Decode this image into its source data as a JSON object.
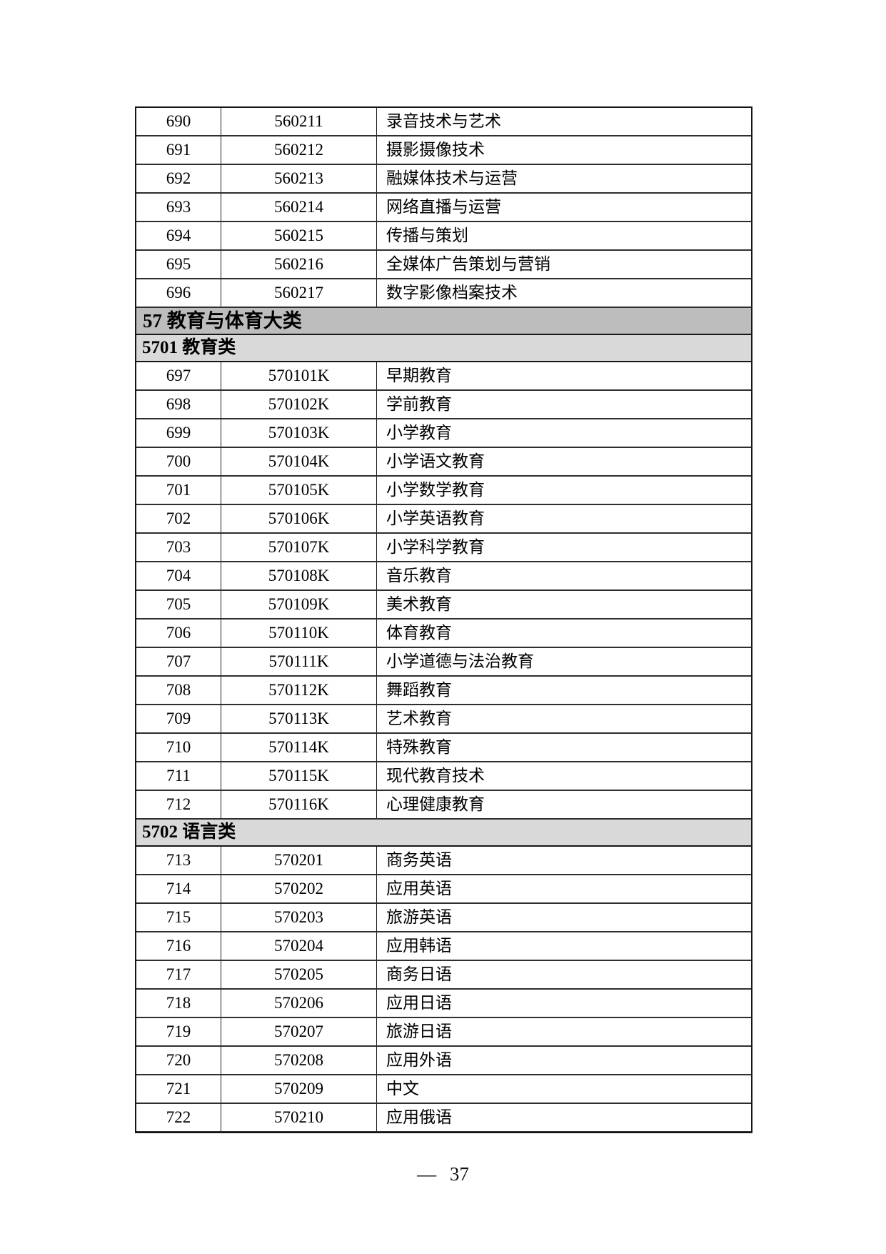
{
  "colors": {
    "page_background": "#ffffff",
    "text": "#000000",
    "table_border": "#161616",
    "major_header_background": "#bdbdbd",
    "sub_header_background": "#d9d9d9"
  },
  "document": {
    "table": {
      "sections": [
        {
          "type": "rows",
          "rows": [
            {
              "seq": "690",
              "code": "560211",
              "name": "录音技术与艺术"
            },
            {
              "seq": "691",
              "code": "560212",
              "name": "摄影摄像技术"
            },
            {
              "seq": "692",
              "code": "560213",
              "name": "融媒体技术与运营"
            },
            {
              "seq": "693",
              "code": "560214",
              "name": "网络直播与运营"
            },
            {
              "seq": "694",
              "code": "560215",
              "name": "传播与策划"
            },
            {
              "seq": "695",
              "code": "560216",
              "name": "全媒体广告策划与营销"
            },
            {
              "seq": "696",
              "code": "560217",
              "name": "数字影像档案技术"
            }
          ]
        },
        {
          "type": "major-header",
          "label": "57 教育与体育大类"
        },
        {
          "type": "sub-header",
          "label": "5701 教育类"
        },
        {
          "type": "rows",
          "rows": [
            {
              "seq": "697",
              "code": "570101K",
              "name": "早期教育"
            },
            {
              "seq": "698",
              "code": "570102K",
              "name": "学前教育"
            },
            {
              "seq": "699",
              "code": "570103K",
              "name": "小学教育"
            },
            {
              "seq": "700",
              "code": "570104K",
              "name": "小学语文教育"
            },
            {
              "seq": "701",
              "code": "570105K",
              "name": "小学数学教育"
            },
            {
              "seq": "702",
              "code": "570106K",
              "name": "小学英语教育"
            },
            {
              "seq": "703",
              "code": "570107K",
              "name": "小学科学教育"
            },
            {
              "seq": "704",
              "code": "570108K",
              "name": "音乐教育"
            },
            {
              "seq": "705",
              "code": "570109K",
              "name": "美术教育"
            },
            {
              "seq": "706",
              "code": "570110K",
              "name": "体育教育"
            },
            {
              "seq": "707",
              "code": "570111K",
              "name": "小学道德与法治教育"
            },
            {
              "seq": "708",
              "code": "570112K",
              "name": "舞蹈教育"
            },
            {
              "seq": "709",
              "code": "570113K",
              "name": "艺术教育"
            },
            {
              "seq": "710",
              "code": "570114K",
              "name": "特殊教育"
            },
            {
              "seq": "711",
              "code": "570115K",
              "name": "现代教育技术"
            },
            {
              "seq": "712",
              "code": "570116K",
              "name": "心理健康教育"
            }
          ]
        },
        {
          "type": "sub-header",
          "label": "5702 语言类"
        },
        {
          "type": "rows",
          "rows": [
            {
              "seq": "713",
              "code": "570201",
              "name": "商务英语"
            },
            {
              "seq": "714",
              "code": "570202",
              "name": "应用英语"
            },
            {
              "seq": "715",
              "code": "570203",
              "name": "旅游英语"
            },
            {
              "seq": "716",
              "code": "570204",
              "name": "应用韩语"
            },
            {
              "seq": "717",
              "code": "570205",
              "name": "商务日语"
            },
            {
              "seq": "718",
              "code": "570206",
              "name": "应用日语"
            },
            {
              "seq": "719",
              "code": "570207",
              "name": "旅游日语"
            },
            {
              "seq": "720",
              "code": "570208",
              "name": "应用外语"
            },
            {
              "seq": "721",
              "code": "570209",
              "name": "中文"
            },
            {
              "seq": "722",
              "code": "570210",
              "name": "应用俄语"
            }
          ]
        }
      ]
    },
    "footer": {
      "text": "— 37"
    }
  }
}
